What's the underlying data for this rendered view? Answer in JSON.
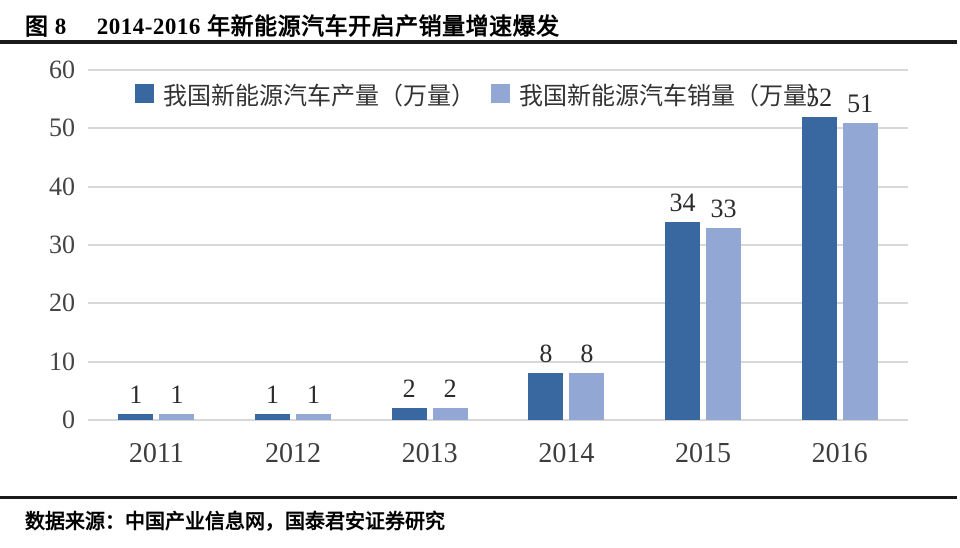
{
  "header": {
    "figure_label": "图 8",
    "title": "2014-2016 年新能源汽车开启产销量增速爆发"
  },
  "footer": {
    "source": "数据来源：中国产业信息网，国泰君安证券研究"
  },
  "chart_data": {
    "type": "bar",
    "categories": [
      "2011",
      "2012",
      "2013",
      "2014",
      "2015",
      "2016"
    ],
    "series": [
      {
        "name": "我国新能源汽车产量（万量）",
        "values": [
          1,
          1,
          2,
          8,
          34,
          52
        ],
        "color": "#38689f"
      },
      {
        "name": "我国新能源汽车销量（万量）",
        "values": [
          1,
          1,
          2,
          8,
          33,
          51
        ],
        "color": "#92a7d3"
      }
    ],
    "title": "2014-2016 年新能源汽车开启产销量增速爆发",
    "xlabel": "",
    "ylabel": "",
    "ylim": [
      0,
      60
    ],
    "yticks": [
      0,
      10,
      20,
      30,
      40,
      50,
      60
    ],
    "grid": true,
    "legend_position": "top",
    "data_labels": true
  },
  "colors": {
    "production_bar": "#38689f",
    "sales_bar": "#92a7d3",
    "gridline": "#d8d8d8",
    "tick_text": "#444444",
    "rule": "#1a1a1a"
  }
}
